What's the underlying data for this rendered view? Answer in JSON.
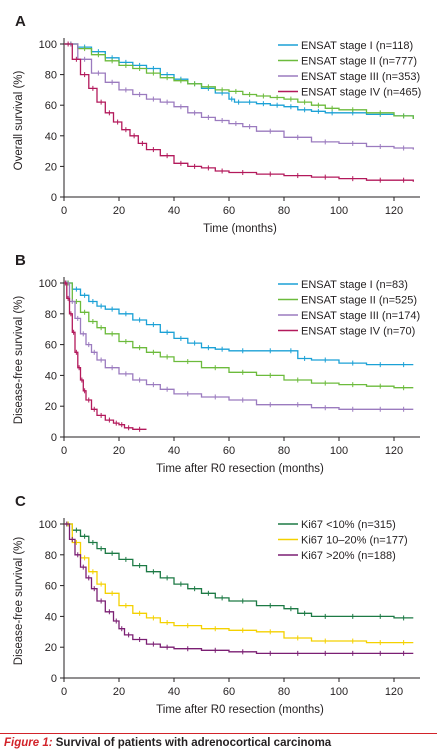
{
  "figure": {
    "caption_label": "Figure 1:",
    "caption_text": "Survival of patients with adrenocortical carcinoma"
  },
  "chart_data": [
    {
      "panel": "A",
      "type": "line",
      "xlabel": "Time (months)",
      "ylabel": "Overall survival (%)",
      "xlim": [
        0,
        128
      ],
      "ylim": [
        0,
        100
      ],
      "xticks": [
        0,
        20,
        40,
        60,
        80,
        100,
        120
      ],
      "yticks": [
        0,
        20,
        40,
        60,
        80,
        100
      ],
      "grid": false,
      "legend": "top-right",
      "series": [
        {
          "name": "ENSAT stage I (n=118)",
          "color": "#1ba1d6",
          "x": [
            0,
            5,
            10,
            15,
            20,
            25,
            30,
            35,
            40,
            45,
            50,
            55,
            60,
            62,
            65,
            70,
            75,
            80,
            85,
            90,
            95,
            100,
            110,
            120,
            127
          ],
          "y": [
            100,
            98,
            95,
            91,
            88,
            86,
            84,
            80,
            77,
            74,
            71,
            68,
            64,
            62,
            62,
            61,
            60,
            59,
            57,
            56,
            55,
            55,
            54,
            53,
            51
          ]
        },
        {
          "name": "ENSAT stage II (n=777)",
          "color": "#6cbb3c",
          "x": [
            0,
            5,
            10,
            15,
            20,
            25,
            30,
            35,
            40,
            45,
            50,
            55,
            60,
            65,
            70,
            75,
            80,
            85,
            90,
            95,
            100,
            110,
            120,
            127
          ],
          "y": [
            100,
            97,
            93,
            89,
            86,
            84,
            81,
            78,
            76,
            74,
            72,
            70,
            69,
            67,
            66,
            65,
            64,
            62,
            60,
            58,
            57,
            55,
            53,
            51
          ]
        },
        {
          "name": "ENSAT stage III (n=353)",
          "color": "#9b7bbf",
          "x": [
            0,
            5,
            10,
            15,
            20,
            25,
            30,
            35,
            40,
            45,
            50,
            55,
            60,
            65,
            70,
            80,
            90,
            100,
            110,
            120,
            127
          ],
          "y": [
            100,
            90,
            81,
            75,
            70,
            67,
            64,
            62,
            59,
            55,
            52,
            50,
            48,
            46,
            43,
            39,
            36,
            35,
            33,
            32,
            31
          ]
        },
        {
          "name": "ENSAT stage IV (n=465)",
          "color": "#b3195b",
          "x": [
            0,
            3,
            6,
            9,
            12,
            15,
            18,
            21,
            24,
            27,
            30,
            35,
            40,
            45,
            50,
            55,
            60,
            70,
            80,
            90,
            100,
            110,
            120,
            127
          ],
          "y": [
            100,
            90,
            80,
            71,
            62,
            55,
            49,
            44,
            40,
            35,
            31,
            27,
            22,
            20,
            19,
            17,
            16,
            15,
            14,
            13,
            12,
            11,
            11,
            10
          ]
        }
      ]
    },
    {
      "panel": "B",
      "type": "line",
      "xlabel": "Time after R0 resection (months)",
      "ylabel": "Disease-free survival (%)",
      "xlim": [
        0,
        128
      ],
      "ylim": [
        0,
        100
      ],
      "xticks": [
        0,
        20,
        40,
        60,
        80,
        100,
        120
      ],
      "yticks": [
        0,
        20,
        40,
        60,
        80,
        100
      ],
      "grid": false,
      "legend": "top-right",
      "series": [
        {
          "name": "ENSAT stage I (n=83)",
          "color": "#1ba1d6",
          "x": [
            0,
            3,
            6,
            9,
            12,
            15,
            20,
            25,
            30,
            35,
            40,
            45,
            50,
            55,
            60,
            70,
            80,
            85,
            90,
            100,
            110,
            120,
            127
          ],
          "y": [
            100,
            96,
            92,
            88,
            85,
            83,
            80,
            76,
            73,
            68,
            64,
            61,
            58,
            57,
            56,
            56,
            56,
            51,
            50,
            48,
            47,
            47,
            47
          ]
        },
        {
          "name": "ENSAT stage II (n=525)",
          "color": "#6cbb3c",
          "x": [
            0,
            3,
            6,
            9,
            12,
            15,
            20,
            25,
            30,
            35,
            40,
            50,
            60,
            70,
            80,
            90,
            100,
            110,
            120,
            127
          ],
          "y": [
            100,
            88,
            81,
            75,
            71,
            67,
            62,
            58,
            55,
            52,
            49,
            45,
            42,
            40,
            37,
            35,
            34,
            33,
            32,
            32
          ]
        },
        {
          "name": "ENSAT stage III (n=174)",
          "color": "#9b7bbf",
          "x": [
            0,
            2,
            4,
            6,
            8,
            10,
            12,
            15,
            20,
            25,
            30,
            35,
            40,
            50,
            60,
            70,
            80,
            90,
            100,
            110,
            120,
            127
          ],
          "y": [
            100,
            88,
            77,
            67,
            60,
            55,
            50,
            45,
            41,
            37,
            34,
            31,
            28,
            26,
            24,
            21,
            21,
            19,
            18,
            18,
            18,
            18
          ]
        },
        {
          "name": "ENSAT stage IV (n=70)",
          "color": "#b3195b",
          "x": [
            0,
            1,
            2,
            3,
            4,
            5,
            6,
            7,
            8,
            10,
            12,
            15,
            18,
            20,
            22,
            25,
            30
          ],
          "y": [
            100,
            90,
            80,
            68,
            55,
            45,
            37,
            30,
            24,
            18,
            14,
            11,
            9,
            8,
            6,
            5,
            5
          ]
        }
      ]
    },
    {
      "panel": "C",
      "type": "line",
      "xlabel": "Time after R0 resection (months)",
      "ylabel": "Disease-free survival (%)",
      "xlim": [
        0,
        128
      ],
      "ylim": [
        0,
        100
      ],
      "xticks": [
        0,
        20,
        40,
        60,
        80,
        100,
        120
      ],
      "yticks": [
        0,
        20,
        40,
        60,
        80,
        100
      ],
      "grid": false,
      "legend": "top-right",
      "series": [
        {
          "name": "Ki67 <10% (n=315)",
          "color": "#1d7a45",
          "x": [
            0,
            3,
            6,
            9,
            12,
            15,
            20,
            25,
            30,
            35,
            40,
            45,
            50,
            55,
            60,
            70,
            80,
            85,
            90,
            100,
            110,
            120,
            127
          ],
          "y": [
            100,
            96,
            92,
            88,
            84,
            81,
            77,
            73,
            69,
            65,
            61,
            58,
            55,
            52,
            50,
            47,
            45,
            42,
            40,
            40,
            40,
            39,
            39
          ]
        },
        {
          "name": "Ki67 10–20% (n=177)",
          "color": "#f4d100",
          "x": [
            0,
            3,
            6,
            9,
            12,
            15,
            20,
            25,
            30,
            35,
            40,
            50,
            60,
            70,
            80,
            90,
            100,
            110,
            120,
            127
          ],
          "y": [
            100,
            88,
            78,
            69,
            61,
            55,
            47,
            42,
            39,
            36,
            34,
            32,
            31,
            30,
            26,
            24,
            24,
            23,
            23,
            23
          ]
        },
        {
          "name": "Ki67 >20% (n=188)",
          "color": "#7b1f73",
          "x": [
            0,
            2,
            4,
            6,
            8,
            10,
            12,
            15,
            18,
            20,
            22,
            25,
            30,
            35,
            40,
            50,
            60,
            70,
            80,
            90,
            100,
            110,
            120,
            127
          ],
          "y": [
            100,
            90,
            80,
            72,
            65,
            58,
            50,
            43,
            37,
            32,
            28,
            25,
            22,
            20,
            19,
            18,
            17,
            16,
            16,
            16,
            16,
            16,
            16,
            16
          ]
        }
      ]
    }
  ]
}
